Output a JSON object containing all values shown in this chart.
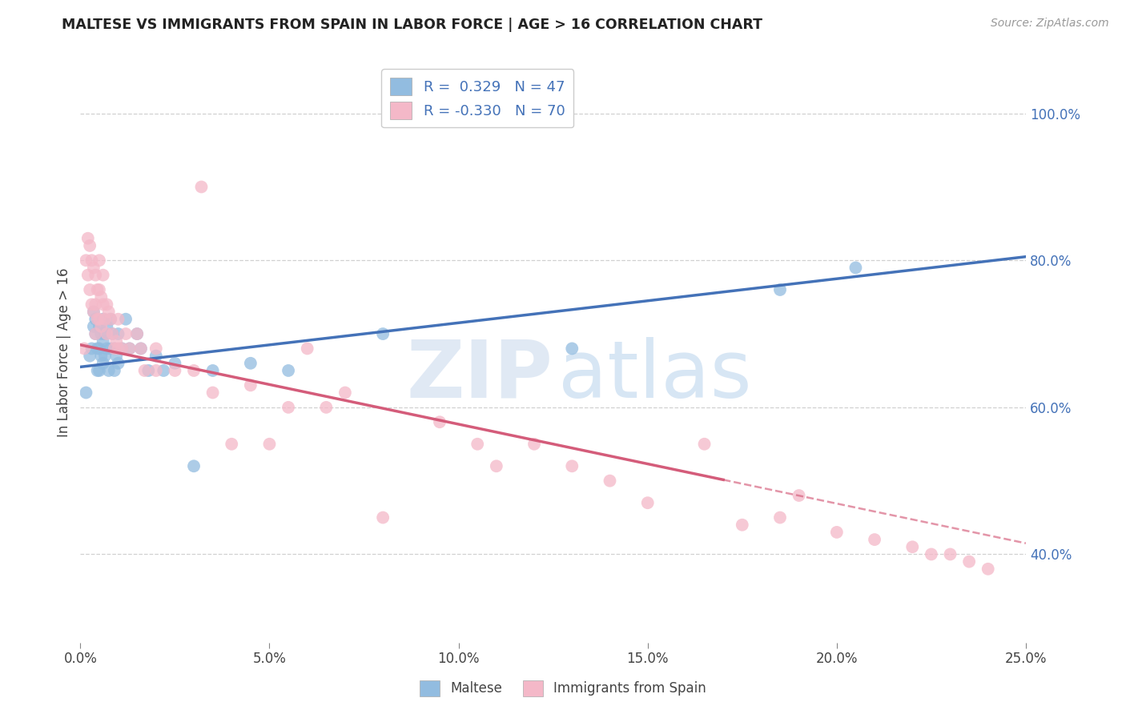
{
  "title": "MALTESE VS IMMIGRANTS FROM SPAIN IN LABOR FORCE | AGE > 16 CORRELATION CHART",
  "source": "Source: ZipAtlas.com",
  "ylabel_left": "In Labor Force | Age > 16",
  "xlabel_ticks": [
    "0.0%",
    "5.0%",
    "10.0%",
    "15.0%",
    "20.0%",
    "25.0%"
  ],
  "xlim": [
    0.0,
    25.0
  ],
  "ylim": [
    28.0,
    107.0
  ],
  "yticks_right": [
    40.0,
    60.0,
    80.0,
    100.0
  ],
  "ytick_labels_right": [
    "40.0%",
    "60.0%",
    "80.0%",
    "100.0%"
  ],
  "legend_blue_label": "R =  0.329   N = 47",
  "legend_pink_label": "R = -0.330   N = 70",
  "blue_color": "#92bce0",
  "pink_color": "#f4b8c8",
  "blue_line_color": "#4472b8",
  "pink_line_color": "#d45c7a",
  "watermark_zip": "ZIP",
  "watermark_atlas": "atlas",
  "bottom_legend_maltese": "Maltese",
  "bottom_legend_spain": "Immigrants from Spain",
  "blue_trend_x0": 0,
  "blue_trend_y0": 65.5,
  "blue_trend_x1": 25,
  "blue_trend_y1": 80.5,
  "pink_trend_x0": 0,
  "pink_trend_y0": 68.5,
  "pink_trend_x1": 25,
  "pink_trend_y1": 41.5,
  "pink_solid_end_x": 17.0,
  "blue_x": [
    0.15,
    0.25,
    0.3,
    0.35,
    0.35,
    0.4,
    0.4,
    0.45,
    0.45,
    0.5,
    0.5,
    0.5,
    0.55,
    0.55,
    0.6,
    0.6,
    0.6,
    0.65,
    0.65,
    0.7,
    0.7,
    0.75,
    0.8,
    0.8,
    0.85,
    0.9,
    0.9,
    0.95,
    1.0,
    1.0,
    1.1,
    1.2,
    1.3,
    1.5,
    1.6,
    1.8,
    2.0,
    2.2,
    2.5,
    3.0,
    3.5,
    4.5,
    5.5,
    8.0,
    13.0,
    18.5,
    20.5
  ],
  "blue_y": [
    62,
    67,
    68,
    71,
    73,
    70,
    72,
    68,
    65,
    71,
    68,
    65,
    70,
    67,
    72,
    69,
    66,
    70,
    67,
    71,
    68,
    65,
    72,
    68,
    70,
    68,
    65,
    67,
    70,
    66,
    68,
    72,
    68,
    70,
    68,
    65,
    67,
    65,
    66,
    52,
    65,
    66,
    65,
    70,
    68,
    76,
    79
  ],
  "pink_x": [
    0.1,
    0.15,
    0.2,
    0.2,
    0.25,
    0.25,
    0.3,
    0.3,
    0.35,
    0.35,
    0.4,
    0.4,
    0.4,
    0.45,
    0.45,
    0.5,
    0.5,
    0.5,
    0.55,
    0.55,
    0.6,
    0.6,
    0.65,
    0.7,
    0.7,
    0.75,
    0.8,
    0.85,
    0.9,
    0.95,
    1.0,
    1.0,
    1.1,
    1.2,
    1.3,
    1.5,
    1.6,
    1.7,
    2.0,
    2.0,
    2.5,
    3.0,
    3.5,
    4.0,
    4.5,
    5.0,
    5.5,
    6.0,
    6.5,
    7.0,
    8.0,
    9.5,
    10.5,
    11.0,
    12.0,
    13.0,
    14.0,
    15.0,
    16.5,
    17.5,
    18.5,
    19.0,
    20.0,
    21.0,
    22.0,
    22.5,
    23.0,
    23.5,
    24.0,
    3.2
  ],
  "pink_y": [
    68,
    80,
    83,
    78,
    82,
    76,
    80,
    74,
    79,
    73,
    78,
    74,
    70,
    76,
    72,
    80,
    76,
    72,
    75,
    71,
    78,
    74,
    72,
    74,
    70,
    73,
    72,
    70,
    68,
    69,
    72,
    68,
    68,
    70,
    68,
    70,
    68,
    65,
    68,
    65,
    65,
    65,
    62,
    55,
    63,
    55,
    60,
    68,
    60,
    62,
    45,
    58,
    55,
    52,
    55,
    52,
    50,
    47,
    55,
    44,
    45,
    48,
    43,
    42,
    41,
    40,
    40,
    39,
    38,
    90
  ],
  "grid_color": "#cccccc",
  "background_color": "#ffffff"
}
